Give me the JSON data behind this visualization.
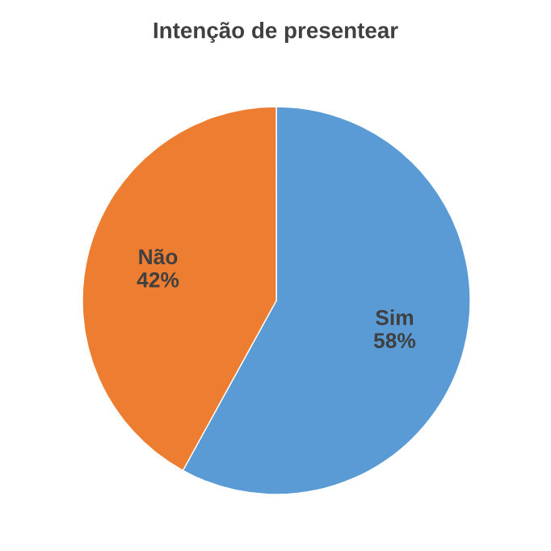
{
  "chart_data": {
    "type": "pie",
    "title": "Intenção de presentear",
    "categories": [
      "Sim",
      "Não"
    ],
    "values": [
      58,
      42
    ],
    "value_labels": [
      "58%",
      "42%"
    ],
    "colors": [
      "#5b9bd5",
      "#ed7d31"
    ],
    "legend": false
  }
}
